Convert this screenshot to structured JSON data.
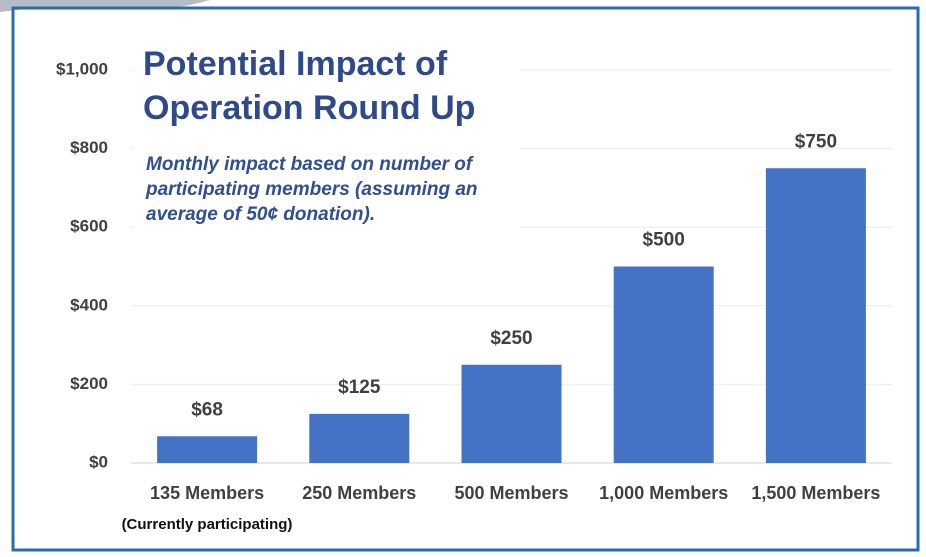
{
  "chart_data": {
    "type": "bar",
    "title_lines": [
      "Potential Impact of",
      "Operation Round Up"
    ],
    "subtitle_lines": [
      "Monthly impact based on number of",
      "participating members (assuming an",
      "average of 50¢ donation)."
    ],
    "categories": [
      "135 Members",
      "250 Members",
      "500 Members",
      "1,000 Members",
      "1,500 Members"
    ],
    "annotation": "(Currently participating)",
    "values": [
      68,
      125,
      250,
      500,
      750
    ],
    "value_labels": [
      "$68",
      "$125",
      "$250",
      "$500",
      "$750"
    ],
    "color": "#4472c4",
    "ylim": [
      0,
      1000
    ],
    "yticks": [
      {
        "value": 0,
        "label": "$0"
      },
      {
        "value": 200,
        "label": "$200"
      },
      {
        "value": 400,
        "label": "$400"
      },
      {
        "value": 600,
        "label": "$600"
      },
      {
        "value": 800,
        "label": "$800"
      },
      {
        "value": 1000,
        "label": "$1,000"
      }
    ],
    "grid": true
  }
}
